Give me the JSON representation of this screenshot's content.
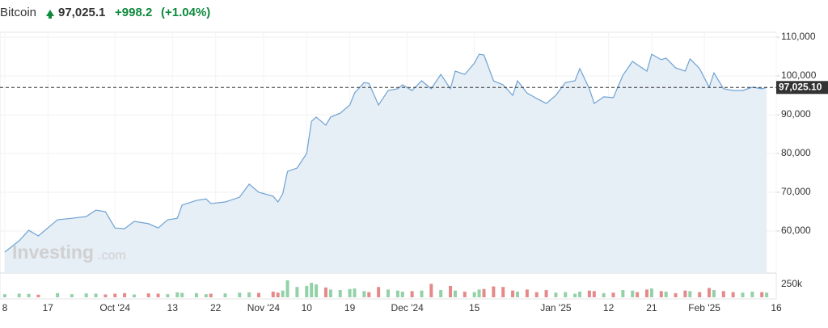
{
  "chart_data": {
    "type": "line",
    "title": "Bitcoin",
    "price": "97,025.1",
    "change": "+998.2",
    "change_percent": "(+1.04%)",
    "change_color": "#0e8a3e",
    "watermark": [
      "Investing",
      ".com"
    ],
    "x": [
      "2024-09-08",
      "2024-09-11",
      "2024-09-13",
      "2024-09-15",
      "2024-09-19",
      "2024-09-22",
      "2024-09-25",
      "2024-09-27",
      "2024-09-29",
      "2024-10-01",
      "2024-10-03",
      "2024-10-05",
      "2024-10-08",
      "2024-10-10",
      "2024-10-12",
      "2024-10-14",
      "2024-10-15",
      "2024-10-18",
      "2024-10-20",
      "2024-10-21",
      "2024-10-24",
      "2024-10-27",
      "2024-10-29",
      "2024-10-31",
      "2024-11-03",
      "2024-11-04",
      "2024-11-05",
      "2024-11-06",
      "2024-11-08",
      "2024-11-10",
      "2024-11-11",
      "2024-11-12",
      "2024-11-14",
      "2024-11-15",
      "2024-11-17",
      "2024-11-19",
      "2024-11-20",
      "2024-11-22",
      "2024-11-23",
      "2024-11-25",
      "2024-11-27",
      "2024-11-29",
      "2024-11-30",
      "2024-12-02",
      "2024-12-04",
      "2024-12-06",
      "2024-12-08",
      "2024-12-10",
      "2024-12-11",
      "2024-12-13",
      "2024-12-15",
      "2024-12-16",
      "2024-12-17",
      "2024-12-19",
      "2024-12-21",
      "2024-12-23",
      "2024-12-24",
      "2024-12-26",
      "2024-12-28",
      "2024-12-30",
      "2025-01-01",
      "2025-01-03",
      "2025-01-05",
      "2025-01-06",
      "2025-01-08",
      "2025-01-09",
      "2025-01-11",
      "2025-01-13",
      "2025-01-15",
      "2025-01-17",
      "2025-01-18",
      "2025-01-20",
      "2025-01-21",
      "2025-01-23",
      "2025-01-24",
      "2025-01-26",
      "2025-01-28",
      "2025-01-29",
      "2025-01-31",
      "2025-02-02",
      "2025-02-03",
      "2025-02-05",
      "2025-02-07",
      "2025-02-09",
      "2025-02-11",
      "2025-02-13",
      "2025-02-14"
    ],
    "series": [
      {
        "color": "#6fa3d3",
        "fill": "#e6eef6",
        "values": [
          54580,
          57500,
          60200,
          58750,
          62900,
          63300,
          63750,
          65400,
          65000,
          60800,
          60600,
          62500,
          61900,
          60800,
          62900,
          63300,
          66700,
          67900,
          68300,
          67100,
          67500,
          68750,
          72100,
          70000,
          69000,
          67500,
          69600,
          75400,
          76250,
          80000,
          88300,
          89400,
          87300,
          89400,
          90400,
          92500,
          95600,
          98300,
          98100,
          92500,
          96250,
          96700,
          97700,
          96250,
          98750,
          96700,
          100400,
          96700,
          101250,
          100400,
          103300,
          105600,
          105400,
          98750,
          97700,
          95000,
          98750,
          95600,
          94200,
          92900,
          95000,
          98300,
          98750,
          101900,
          96700,
          92900,
          94600,
          94400,
          100200,
          103750,
          102900,
          101250,
          105600,
          104200,
          104600,
          102100,
          101250,
          104400,
          101900,
          97100,
          100800,
          96700,
          96250,
          96250,
          97100,
          96700,
          97025.1
        ]
      }
    ],
    "xlim": [
      "2024-09-07",
      "2025-02-16"
    ],
    "xticks": [
      {
        "value": "2024-09-08",
        "label": "8"
      },
      {
        "value": "2024-09-17",
        "label": "17"
      },
      {
        "value": "2024-10-01",
        "label": "Oct '24"
      },
      {
        "value": "2024-10-13",
        "label": "13"
      },
      {
        "value": "2024-10-22",
        "label": "22"
      },
      {
        "value": "2024-11-01",
        "label": "Nov '24"
      },
      {
        "value": "2024-11-10",
        "label": "10"
      },
      {
        "value": "2024-11-19",
        "label": "19"
      },
      {
        "value": "2024-12-01",
        "label": "Dec '24"
      },
      {
        "value": "2024-12-15",
        "label": "15"
      },
      {
        "value": "2025-01-01",
        "label": "Jan '25"
      },
      {
        "value": "2025-01-12",
        "label": "12"
      },
      {
        "value": "2025-01-21",
        "label": "21"
      },
      {
        "value": "2025-02-01",
        "label": "Feb '25"
      },
      {
        "value": "2025-02-16",
        "label": "16"
      }
    ],
    "ylim": [
      49170,
      111250
    ],
    "yticks": [
      {
        "value": 60000,
        "label": "60,000"
      },
      {
        "value": 70000,
        "label": "70,000"
      },
      {
        "value": 80000,
        "label": "80,000"
      },
      {
        "value": 90000,
        "label": "90,000"
      },
      {
        "value": 100000,
        "label": "100,000"
      },
      {
        "value": 110000,
        "label": "110,000"
      }
    ],
    "grid": true,
    "last_price": {
      "value": 97025.1,
      "label": "97,025.10"
    },
    "volume": {
      "up_color": "#93d1a8",
      "down_color": "#e58a8a",
      "ylim": [
        0,
        437500
      ],
      "yticks": [
        {
          "value": 250000,
          "label": "250k"
        }
      ],
      "values": [
        60000,
        70000,
        65000,
        50000,
        80000,
        60000,
        75000,
        70000,
        55000,
        70000,
        80000,
        55000,
        75000,
        70000,
        60000,
        95000,
        85000,
        80000,
        60000,
        70000,
        75000,
        90000,
        95000,
        85000,
        110000,
        90000,
        130000,
        330000,
        200000,
        220000,
        280000,
        250000,
        190000,
        150000,
        140000,
        160000,
        170000,
        120000,
        100000,
        200000,
        150000,
        130000,
        110000,
        120000,
        130000,
        260000,
        140000,
        220000,
        130000,
        110000,
        100000,
        150000,
        160000,
        210000,
        200000,
        130000,
        110000,
        150000,
        100000,
        140000,
        90000,
        100000,
        70000,
        110000,
        130000,
        120000,
        80000,
        90000,
        140000,
        130000,
        100000,
        150000,
        170000,
        120000,
        110000,
        80000,
        130000,
        120000,
        100000,
        180000,
        140000,
        120000,
        100000,
        90000,
        110000,
        100000,
        90000
      ]
    }
  }
}
